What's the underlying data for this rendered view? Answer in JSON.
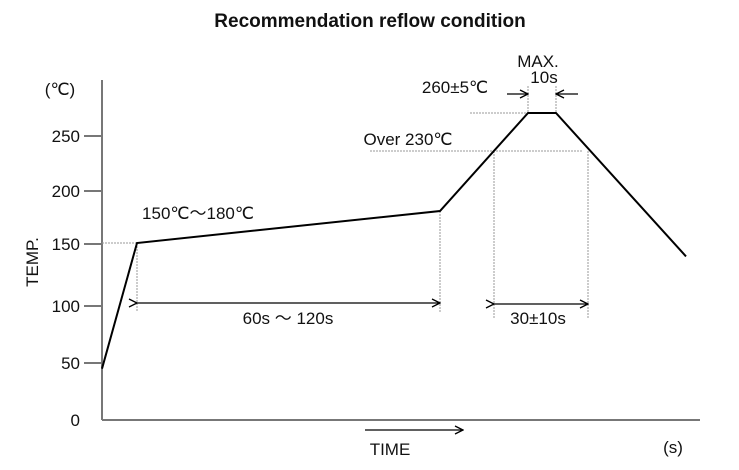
{
  "chart_data": {
    "type": "line",
    "title": "Recommendation reflow condition",
    "xlabel": "TIME",
    "xunit": "(s)",
    "ylabel": "TEMP.",
    "yunit": "(℃)",
    "yticks": [
      0,
      50,
      100,
      150,
      200,
      250
    ],
    "ylim": [
      0,
      280
    ],
    "grid": false,
    "profile_temperatures": [
      45,
      153,
      182,
      260,
      260,
      140
    ],
    "annotations": {
      "preheat_temp": "150℃～180℃",
      "preheat_time": "60s ～ 120s",
      "peak_temp": "260±5℃",
      "peak_time_line1": "MAX.",
      "peak_time_line2": "10s",
      "above_liquidus": "Over 230℃",
      "above_liquidus_time": "30±10s"
    },
    "colors": {
      "profile": "#000000",
      "axis": "#777777",
      "guide": "#999999"
    }
  }
}
